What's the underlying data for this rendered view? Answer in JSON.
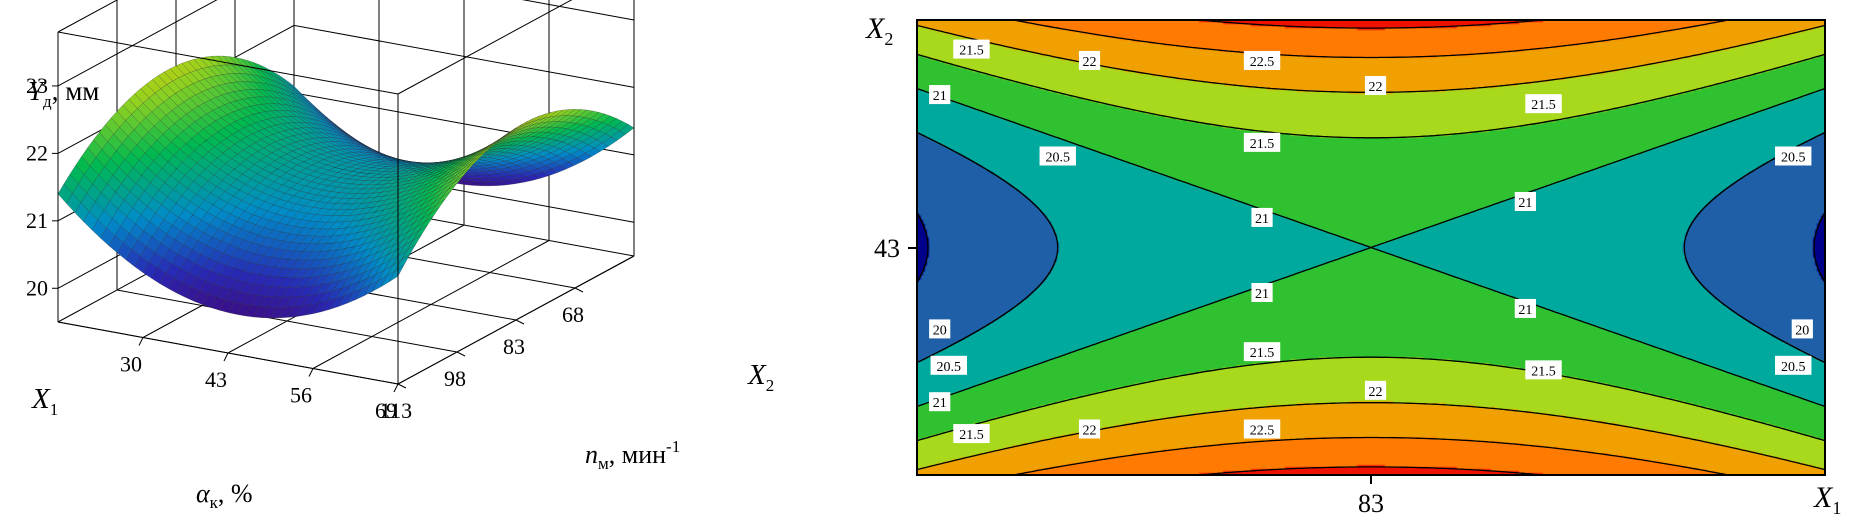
{
  "chart_data": [
    {
      "type": "surface",
      "zlabel": "Y",
      "zlabel_sub": "д",
      "zlabel_unit": ", мм",
      "zticks": [
        "20",
        "21",
        "22",
        "23"
      ],
      "zlim": [
        19.5,
        23.8
      ],
      "x1_label": "X",
      "x1_sub": "1",
      "x2_label": "X",
      "x2_sub": "2",
      "alpha_label": "α",
      "alpha_sub": "к",
      "alpha_unit": ", %",
      "alpha_ticks": [
        "30",
        "43",
        "56",
        "69"
      ],
      "alpha_range": [
        17,
        69
      ],
      "n_label": "n",
      "n_sub": "м",
      "n_unit": ", мин",
      "n_sup": "-1",
      "n_ticks": [
        "68",
        "83",
        "98",
        "113"
      ],
      "n_range": [
        53,
        113
      ],
      "saddle": {
        "center_z": 21.2,
        "alpha_coef": 1.0,
        "n_coef": 1.0
      },
      "colormap": "rainbow"
    },
    {
      "type": "contour",
      "x_label": "X",
      "x_sub": "1",
      "y_label": "X",
      "y_sub": "2",
      "x_ticks": [
        "83"
      ],
      "y_ticks": [
        "43"
      ],
      "levels": [
        20.0,
        20.5,
        21.0,
        21.5,
        22.0,
        22.5,
        23.0
      ],
      "label_values": [
        "20",
        "20.5",
        "21",
        "21.5",
        "22",
        "22.5"
      ],
      "fill_colors": [
        "#00008b",
        "#1f5fa8",
        "#00a99d",
        "#2fc12f",
        "#a8d91c",
        "#f0a000",
        "#ff7a00",
        "#ee1100"
      ]
    }
  ]
}
